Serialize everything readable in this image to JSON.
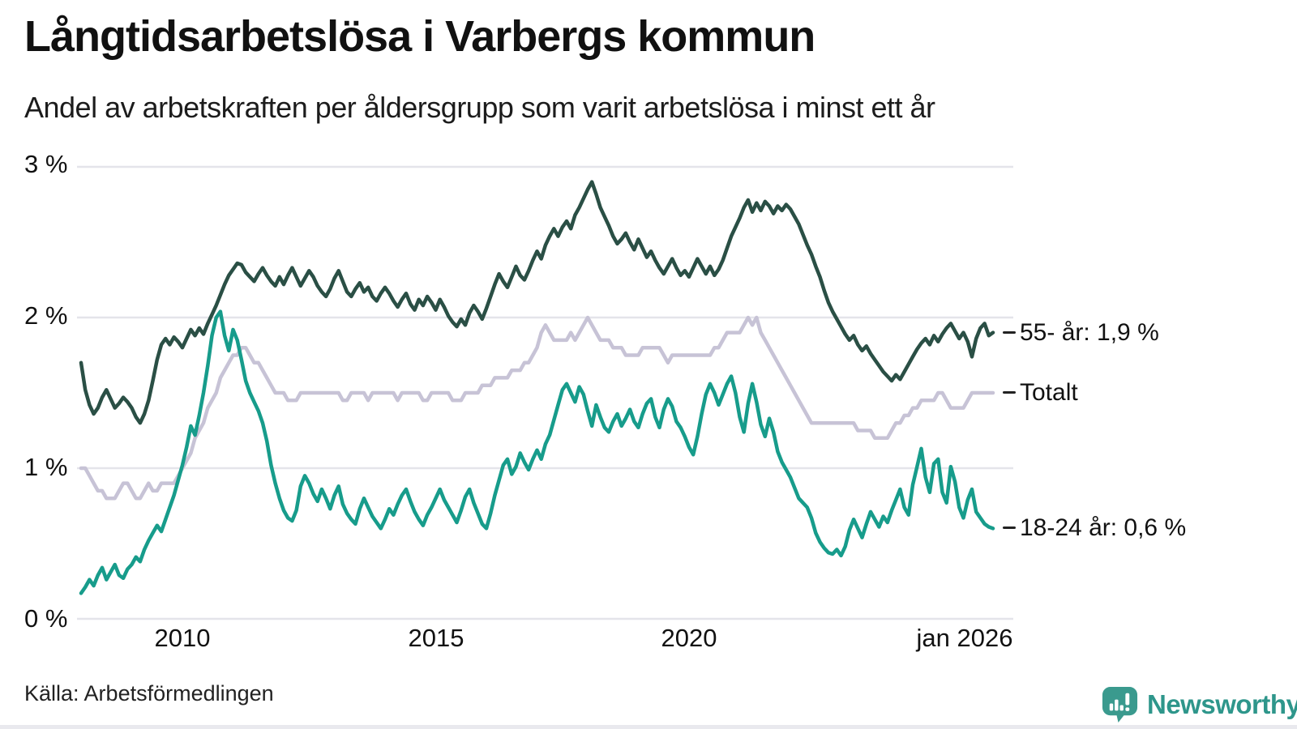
{
  "header": {
    "title": "Långtidsarbetslösa i Varbergs kommun",
    "subtitle": "Andel av arbetskraften per åldersgrupp som varit arbetslösa i minst ett år"
  },
  "footer": {
    "source": "Källa: Arbetsförmedlingen",
    "brand": "Newsworthy",
    "brand_icon": "speech-bubble-bar-chart-icon",
    "brand_color": "#2e968b"
  },
  "chart_data": {
    "type": "line",
    "title": "Långtidsarbetslösa i Varbergs kommun",
    "subtitle": "Andel av arbetskraften per åldersgrupp som varit arbetslösa i minst ett år",
    "unit": "%",
    "grid": true,
    "legend_position": "right-end-labels",
    "x_axis": {
      "start_year_decimal": 2008.0,
      "end_year_decimal": 2026.083,
      "resolution": "monthly",
      "ticks": [
        {
          "label": "2010",
          "year": 2010
        },
        {
          "label": "2015",
          "year": 2015
        },
        {
          "label": "2020",
          "year": 2020
        },
        {
          "label": "jan 2026",
          "year": 2026
        }
      ]
    },
    "y_axis": {
      "ticks": [
        "3 %",
        "2 %",
        "1 %",
        "0 %"
      ],
      "values": [
        3,
        2,
        1,
        0
      ],
      "range": [
        0,
        3.1
      ],
      "grid_color": "#e4e4ea"
    },
    "series": [
      {
        "name": "55- år",
        "label": "55- år: 1,9 %",
        "end_value": "1,9 %",
        "color": "#2a4f45",
        "start_year": 2008,
        "points_per_year": 12,
        "values": [
          1.7,
          1.52,
          1.42,
          1.36,
          1.4,
          1.47,
          1.52,
          1.46,
          1.4,
          1.43,
          1.47,
          1.44,
          1.4,
          1.34,
          1.3,
          1.36,
          1.45,
          1.58,
          1.72,
          1.82,
          1.86,
          1.82,
          1.87,
          1.84,
          1.8,
          1.86,
          1.92,
          1.88,
          1.93,
          1.89,
          1.96,
          2.02,
          2.08,
          2.15,
          2.22,
          2.28,
          2.32,
          2.36,
          2.35,
          2.3,
          2.27,
          2.24,
          2.29,
          2.33,
          2.28,
          2.24,
          2.21,
          2.27,
          2.22,
          2.28,
          2.33,
          2.27,
          2.21,
          2.26,
          2.31,
          2.27,
          2.21,
          2.17,
          2.14,
          2.19,
          2.26,
          2.31,
          2.24,
          2.17,
          2.14,
          2.19,
          2.23,
          2.17,
          2.2,
          2.14,
          2.11,
          2.16,
          2.2,
          2.16,
          2.11,
          2.07,
          2.12,
          2.16,
          2.09,
          2.05,
          2.12,
          2.08,
          2.14,
          2.1,
          2.05,
          2.12,
          2.07,
          2.01,
          1.97,
          1.94,
          1.99,
          1.95,
          2.03,
          2.08,
          2.04,
          1.99,
          2.06,
          2.14,
          2.22,
          2.29,
          2.24,
          2.2,
          2.27,
          2.34,
          2.28,
          2.25,
          2.31,
          2.38,
          2.44,
          2.39,
          2.48,
          2.54,
          2.59,
          2.54,
          2.6,
          2.64,
          2.59,
          2.68,
          2.73,
          2.79,
          2.85,
          2.9,
          2.82,
          2.73,
          2.67,
          2.61,
          2.54,
          2.49,
          2.52,
          2.56,
          2.5,
          2.45,
          2.52,
          2.46,
          2.4,
          2.44,
          2.38,
          2.33,
          2.29,
          2.34,
          2.39,
          2.33,
          2.28,
          2.31,
          2.27,
          2.33,
          2.39,
          2.34,
          2.29,
          2.34,
          2.28,
          2.32,
          2.38,
          2.46,
          2.54,
          2.6,
          2.66,
          2.73,
          2.78,
          2.7,
          2.76,
          2.71,
          2.77,
          2.74,
          2.69,
          2.74,
          2.71,
          2.75,
          2.72,
          2.67,
          2.62,
          2.55,
          2.48,
          2.42,
          2.34,
          2.27,
          2.18,
          2.1,
          2.04,
          1.99,
          1.94,
          1.89,
          1.85,
          1.88,
          1.82,
          1.78,
          1.81,
          1.76,
          1.72,
          1.68,
          1.64,
          1.61,
          1.58,
          1.62,
          1.59,
          1.64,
          1.69,
          1.74,
          1.79,
          1.83,
          1.86,
          1.82,
          1.88,
          1.84,
          1.89,
          1.93,
          1.96,
          1.91,
          1.86,
          1.9,
          1.84,
          1.74,
          1.86,
          1.93,
          1.96,
          1.88,
          1.9
        ]
      },
      {
        "name": "Totalt",
        "label": "Totalt",
        "end_value": "1,5 %",
        "color": "#c7c3d6",
        "start_year": 2008,
        "points_per_year": 12,
        "values": [
          1.0,
          1.0,
          0.95,
          0.9,
          0.85,
          0.85,
          0.8,
          0.8,
          0.8,
          0.85,
          0.9,
          0.9,
          0.85,
          0.8,
          0.8,
          0.85,
          0.9,
          0.85,
          0.85,
          0.9,
          0.9,
          0.9,
          0.9,
          0.95,
          1.0,
          1.05,
          1.1,
          1.2,
          1.25,
          1.3,
          1.4,
          1.45,
          1.5,
          1.6,
          1.65,
          1.7,
          1.75,
          1.75,
          1.8,
          1.8,
          1.75,
          1.7,
          1.7,
          1.65,
          1.6,
          1.55,
          1.5,
          1.5,
          1.5,
          1.45,
          1.45,
          1.45,
          1.5,
          1.5,
          1.5,
          1.5,
          1.5,
          1.5,
          1.5,
          1.5,
          1.5,
          1.5,
          1.45,
          1.45,
          1.5,
          1.5,
          1.5,
          1.5,
          1.45,
          1.5,
          1.5,
          1.5,
          1.5,
          1.5,
          1.5,
          1.45,
          1.5,
          1.5,
          1.5,
          1.5,
          1.5,
          1.45,
          1.45,
          1.5,
          1.5,
          1.5,
          1.5,
          1.5,
          1.45,
          1.45,
          1.45,
          1.5,
          1.5,
          1.5,
          1.5,
          1.55,
          1.55,
          1.55,
          1.6,
          1.6,
          1.6,
          1.6,
          1.65,
          1.65,
          1.65,
          1.7,
          1.7,
          1.75,
          1.8,
          1.9,
          1.95,
          1.9,
          1.85,
          1.85,
          1.85,
          1.85,
          1.9,
          1.85,
          1.9,
          1.95,
          2.0,
          1.95,
          1.9,
          1.85,
          1.85,
          1.85,
          1.8,
          1.8,
          1.8,
          1.75,
          1.75,
          1.75,
          1.75,
          1.8,
          1.8,
          1.8,
          1.8,
          1.8,
          1.75,
          1.7,
          1.75,
          1.75,
          1.75,
          1.75,
          1.75,
          1.75,
          1.75,
          1.75,
          1.75,
          1.75,
          1.8,
          1.8,
          1.85,
          1.9,
          1.9,
          1.9,
          1.9,
          1.95,
          2.0,
          1.95,
          2.0,
          1.9,
          1.85,
          1.8,
          1.75,
          1.7,
          1.65,
          1.6,
          1.55,
          1.5,
          1.45,
          1.4,
          1.35,
          1.3,
          1.3,
          1.3,
          1.3,
          1.3,
          1.3,
          1.3,
          1.3,
          1.3,
          1.3,
          1.3,
          1.25,
          1.25,
          1.25,
          1.25,
          1.2,
          1.2,
          1.2,
          1.2,
          1.25,
          1.3,
          1.3,
          1.35,
          1.35,
          1.4,
          1.4,
          1.45,
          1.45,
          1.45,
          1.45,
          1.5,
          1.5,
          1.45,
          1.4,
          1.4,
          1.4,
          1.4,
          1.45,
          1.5,
          1.5,
          1.5,
          1.5,
          1.5,
          1.5
        ]
      },
      {
        "name": "18-24 år",
        "label": "18-24 år: 0,6 %",
        "end_value": "0,6 %",
        "color": "#179c8b",
        "start_year": 2008,
        "points_per_year": 12,
        "values": [
          0.17,
          0.21,
          0.26,
          0.22,
          0.29,
          0.34,
          0.26,
          0.31,
          0.36,
          0.29,
          0.27,
          0.33,
          0.36,
          0.41,
          0.38,
          0.46,
          0.52,
          0.57,
          0.62,
          0.58,
          0.66,
          0.74,
          0.82,
          0.92,
          1.02,
          1.14,
          1.28,
          1.22,
          1.35,
          1.5,
          1.68,
          1.88,
          2.0,
          2.04,
          1.88,
          1.78,
          1.92,
          1.85,
          1.72,
          1.58,
          1.5,
          1.44,
          1.38,
          1.3,
          1.18,
          1.02,
          0.9,
          0.8,
          0.72,
          0.67,
          0.65,
          0.72,
          0.88,
          0.95,
          0.9,
          0.83,
          0.78,
          0.86,
          0.8,
          0.73,
          0.82,
          0.88,
          0.76,
          0.7,
          0.66,
          0.63,
          0.73,
          0.8,
          0.74,
          0.68,
          0.64,
          0.6,
          0.66,
          0.73,
          0.69,
          0.76,
          0.82,
          0.86,
          0.78,
          0.71,
          0.66,
          0.62,
          0.69,
          0.74,
          0.8,
          0.86,
          0.79,
          0.74,
          0.69,
          0.64,
          0.72,
          0.81,
          0.86,
          0.77,
          0.7,
          0.63,
          0.6,
          0.7,
          0.82,
          0.92,
          1.02,
          1.06,
          0.96,
          1.01,
          1.1,
          1.04,
          0.99,
          1.06,
          1.12,
          1.06,
          1.16,
          1.22,
          1.32,
          1.42,
          1.52,
          1.56,
          1.5,
          1.44,
          1.54,
          1.49,
          1.38,
          1.28,
          1.42,
          1.34,
          1.27,
          1.24,
          1.31,
          1.36,
          1.28,
          1.33,
          1.39,
          1.31,
          1.27,
          1.36,
          1.43,
          1.46,
          1.34,
          1.27,
          1.39,
          1.46,
          1.41,
          1.31,
          1.27,
          1.21,
          1.14,
          1.09,
          1.21,
          1.36,
          1.49,
          1.56,
          1.5,
          1.42,
          1.49,
          1.56,
          1.61,
          1.5,
          1.34,
          1.24,
          1.43,
          1.56,
          1.44,
          1.29,
          1.21,
          1.33,
          1.24,
          1.11,
          1.04,
          0.99,
          0.94,
          0.87,
          0.8,
          0.77,
          0.74,
          0.67,
          0.57,
          0.51,
          0.47,
          0.44,
          0.43,
          0.46,
          0.42,
          0.48,
          0.59,
          0.66,
          0.6,
          0.54,
          0.63,
          0.71,
          0.66,
          0.61,
          0.68,
          0.64,
          0.72,
          0.79,
          0.86,
          0.74,
          0.69,
          0.89,
          1.01,
          1.13,
          0.94,
          0.84,
          1.03,
          1.06,
          0.84,
          0.77,
          1.01,
          0.91,
          0.74,
          0.67,
          0.79,
          0.86,
          0.71,
          0.67,
          0.63,
          0.61,
          0.6
        ]
      }
    ]
  }
}
